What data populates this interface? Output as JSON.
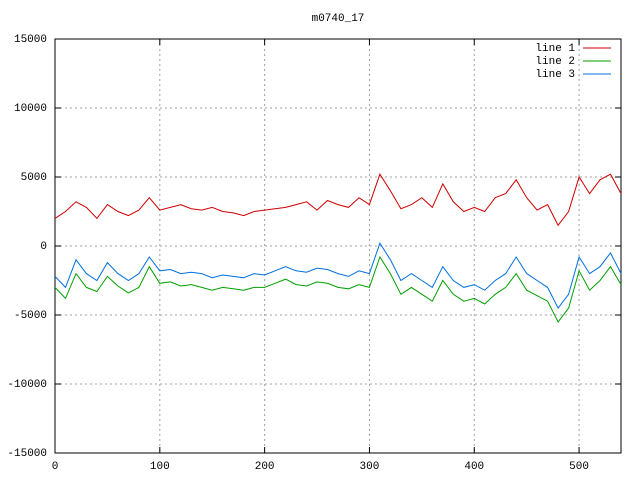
{
  "chart_data": {
    "type": "line",
    "title": "m0740_17",
    "x": [
      0,
      10,
      20,
      30,
      40,
      50,
      60,
      70,
      80,
      90,
      100,
      110,
      120,
      130,
      140,
      150,
      160,
      170,
      180,
      190,
      200,
      210,
      220,
      230,
      240,
      250,
      260,
      270,
      280,
      290,
      300,
      310,
      320,
      330,
      340,
      350,
      360,
      370,
      380,
      390,
      400,
      410,
      420,
      430,
      440,
      450,
      460,
      470,
      480,
      490,
      500,
      510,
      520,
      530,
      540
    ],
    "series": [
      {
        "name": "line 1",
        "color": "#d00000",
        "values": [
          2000,
          2500,
          3200,
          2800,
          2000,
          3000,
          2500,
          2200,
          2600,
          3500,
          2600,
          2800,
          3000,
          2700,
          2600,
          2800,
          2500,
          2400,
          2200,
          2500,
          2600,
          2700,
          2800,
          3000,
          3200,
          2600,
          3300,
          3000,
          2800,
          3500,
          3000,
          5200,
          4000,
          2700,
          3000,
          3500,
          2800,
          4500,
          3200,
          2500,
          2800,
          2500,
          3500,
          3800,
          4800,
          3500,
          2600,
          3000,
          1500,
          2500,
          5000,
          3800,
          4800,
          5200,
          3800
        ]
      },
      {
        "name": "line 2",
        "color": "#00a000",
        "values": [
          -3000,
          -3800,
          -2000,
          -3000,
          -3300,
          -2200,
          -2900,
          -3400,
          -3000,
          -1500,
          -2700,
          -2600,
          -2900,
          -2800,
          -3000,
          -3200,
          -3000,
          -3100,
          -3200,
          -3000,
          -3000,
          -2700,
          -2400,
          -2800,
          -2900,
          -2600,
          -2700,
          -3000,
          -3100,
          -2800,
          -3000,
          -800,
          -2000,
          -3500,
          -3000,
          -3500,
          -4000,
          -2500,
          -3500,
          -4000,
          -3800,
          -4200,
          -3500,
          -3000,
          -2000,
          -3200,
          -3600,
          -4000,
          -5500,
          -4500,
          -1800,
          -3200,
          -2500,
          -1500,
          -2800
        ]
      },
      {
        "name": "line 3",
        "color": "#0070e0",
        "values": [
          -2200,
          -3000,
          -1000,
          -2000,
          -2500,
          -1200,
          -2000,
          -2500,
          -2000,
          -800,
          -1800,
          -1700,
          -2000,
          -1900,
          -2000,
          -2300,
          -2100,
          -2200,
          -2300,
          -2000,
          -2100,
          -1800,
          -1500,
          -1800,
          -1900,
          -1600,
          -1700,
          -2000,
          -2200,
          -1800,
          -2000,
          200,
          -1000,
          -2500,
          -2000,
          -2500,
          -3000,
          -1500,
          -2500,
          -3000,
          -2800,
          -3200,
          -2500,
          -2000,
          -800,
          -2000,
          -2500,
          -3000,
          -4500,
          -3500,
          -800,
          -2000,
          -1500,
          -500,
          -2000
        ]
      }
    ],
    "xlim": [
      0,
      540
    ],
    "xticks": [
      0,
      100,
      200,
      300,
      400,
      500
    ],
    "ylim": [
      -15000,
      15000
    ],
    "yticks": [
      -15000,
      -10000,
      -5000,
      0,
      5000,
      10000,
      15000
    ],
    "grid": true,
    "legend": "top-right"
  }
}
